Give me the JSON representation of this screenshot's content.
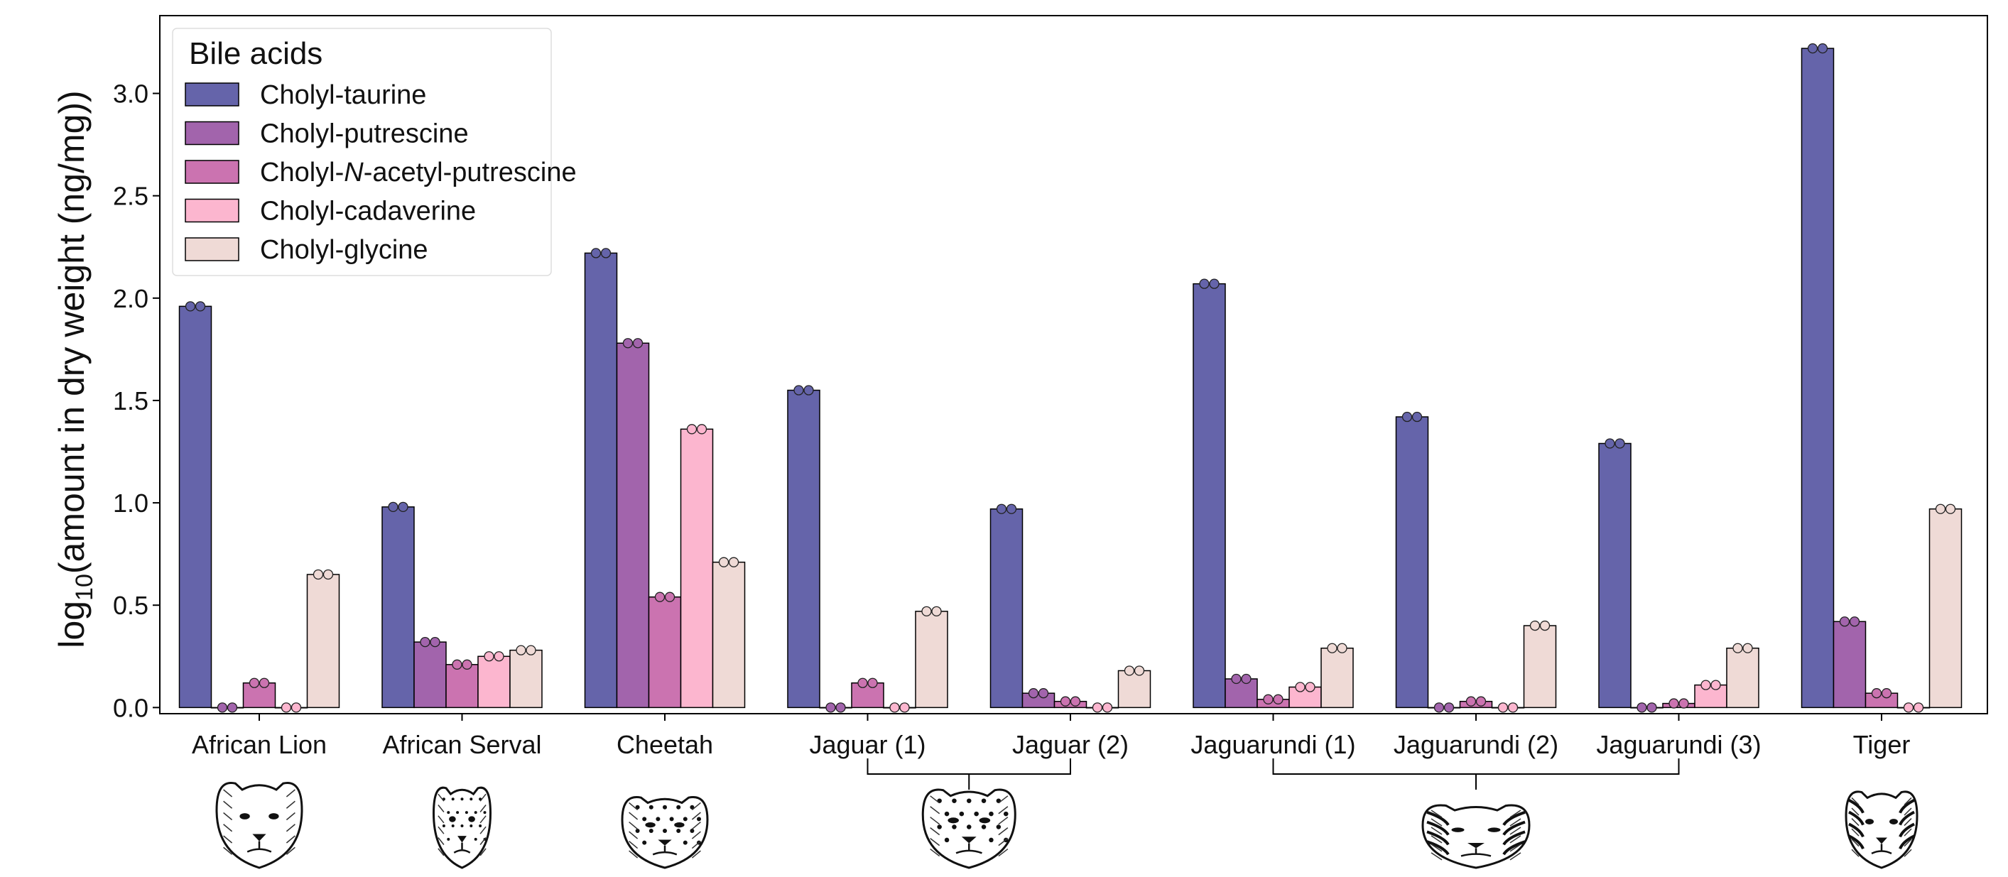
{
  "chart_data": {
    "type": "bar",
    "ylabel_main": "log",
    "ylabel_sub": "10",
    "ylabel_rest": "(amount in dry weight (ng/mg))",
    "ylim": [
      -0.03,
      3.38
    ],
    "yticks": [
      "0.0",
      "0.5",
      "1.0",
      "1.5",
      "2.0",
      "2.5",
      "3.0"
    ],
    "grid": false,
    "legend": {
      "title": "Bile acids",
      "placement": "top-left",
      "entries": [
        {
          "pre": "Cholyl-taurine",
          "ital": "",
          "post": ""
        },
        {
          "pre": "Cholyl-putrescine",
          "ital": "",
          "post": ""
        },
        {
          "pre": "Cholyl-",
          "ital": "N",
          "post": "-acetyl-putrescine"
        },
        {
          "pre": "Cholyl-cadaverine",
          "ital": "",
          "post": ""
        },
        {
          "pre": "Cholyl-glycine",
          "ital": "",
          "post": ""
        }
      ]
    },
    "colors": [
      "#6564aa",
      "#a264ac",
      "#cb73b0",
      "#fcb6cf",
      "#efdad6"
    ],
    "categories": [
      "African Lion",
      "African Serval",
      "Cheetah",
      "Jaguar (1)",
      "Jaguar (2)",
      "Jaguarundi (1)",
      "Jaguarundi (2)",
      "Jaguarundi (3)",
      "Tiger"
    ],
    "series": [
      {
        "name": "Cholyl-taurine",
        "values": [
          1.96,
          0.98,
          2.22,
          1.55,
          0.97,
          2.07,
          1.42,
          1.29,
          3.22
        ]
      },
      {
        "name": "Cholyl-putrescine",
        "values": [
          0.0,
          0.32,
          1.78,
          0.0,
          0.07,
          0.14,
          0.0,
          0.0,
          0.42
        ]
      },
      {
        "name": "Cholyl-N-acetyl-putrescine",
        "values": [
          0.12,
          0.21,
          0.54,
          0.12,
          0.03,
          0.04,
          0.03,
          0.02,
          0.07
        ]
      },
      {
        "name": "Cholyl-cadaverine",
        "values": [
          0.0,
          0.25,
          1.36,
          0.0,
          0.0,
          0.1,
          0.0,
          0.11,
          0.0
        ]
      },
      {
        "name": "Cholyl-glycine",
        "values": [
          0.65,
          0.28,
          0.71,
          0.47,
          0.18,
          0.29,
          0.4,
          0.29,
          0.97
        ]
      }
    ],
    "groups": [
      {
        "name": "Jaguar",
        "members": [
          "Jaguar (1)",
          "Jaguar (2)"
        ]
      },
      {
        "name": "Jaguarundi",
        "members": [
          "Jaguarundi (1)",
          "Jaguarundi (2)",
          "Jaguarundi (3)"
        ]
      }
    ],
    "animal_icons": [
      {
        "icon": "lion-icon",
        "category": "African Lion"
      },
      {
        "icon": "serval-icon",
        "category": "African Serval"
      },
      {
        "icon": "cheetah-icon",
        "category": "Cheetah"
      },
      {
        "icon": "jaguar-icon",
        "group": "Jaguar"
      },
      {
        "icon": "jaguarundi-icon",
        "group": "Jaguarundi"
      },
      {
        "icon": "tiger-icon",
        "category": "Tiger"
      }
    ]
  }
}
